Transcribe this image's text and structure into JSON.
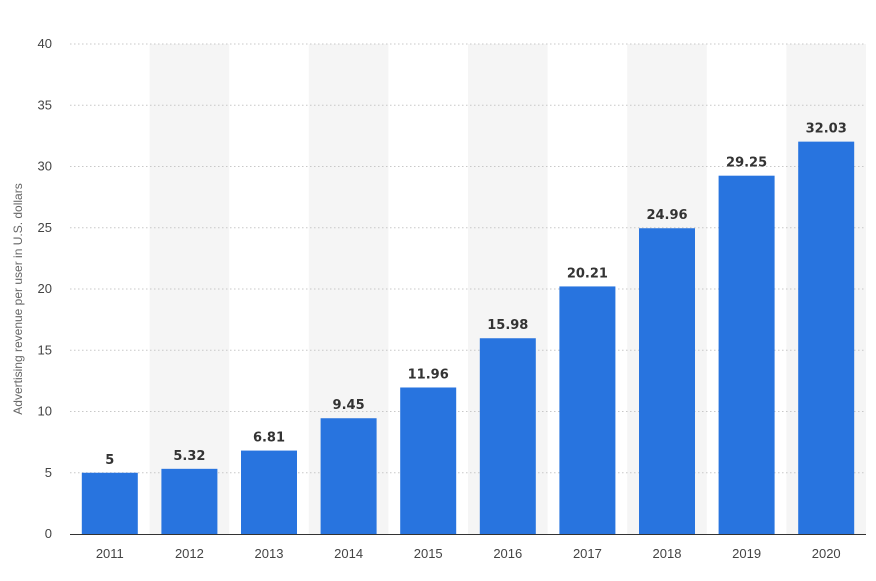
{
  "chart_data": {
    "type": "bar",
    "categories": [
      "2011",
      "2012",
      "2013",
      "2014",
      "2015",
      "2016",
      "2017",
      "2018",
      "2019",
      "2020"
    ],
    "values": [
      5,
      5.32,
      6.81,
      9.45,
      11.96,
      15.98,
      20.21,
      24.96,
      29.25,
      32.03
    ],
    "value_labels": [
      "5",
      "5.32",
      "6.81",
      "9.45",
      "11.96",
      "15.98",
      "20.21",
      "24.96",
      "29.25",
      "32.03"
    ],
    "title": "",
    "xlabel": "",
    "ylabel": "Advertising revenue per user in U.S. dollars",
    "ylim": [
      0,
      40
    ],
    "yticks": [
      "0",
      "5",
      "10",
      "15",
      "20",
      "25",
      "30",
      "35",
      "40"
    ],
    "grid": true,
    "alternating_bands": true,
    "colors": {
      "bar": "#2874df",
      "band": "#f5f5f5",
      "grid": "#c8c8c8",
      "axis": "#333333"
    }
  }
}
